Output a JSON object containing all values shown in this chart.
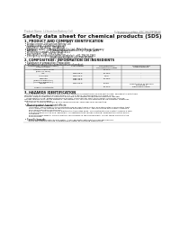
{
  "bg_color": "#ffffff",
  "header_left": "Product Name: Lithium Ion Battery Cell",
  "header_right_line1": "Substance number: 89C1632RPQK-20",
  "header_right_line2": "Established / Revision: Dec.7,2016",
  "title": "Safety data sheet for chemical products (SDS)",
  "s1_title": "1. PRODUCT AND COMPANY IDENTIFICATION",
  "s1_lines": [
    " • Product name: Lithium Ion Battery Cell",
    " • Product code: Cylindrical-type cell",
    "   (INR18650, INR18650, INR18650A",
    " • Company name:     Sanyo Electric Co., Ltd., Mobile Energy Company",
    " • Address:              2001  Kamitsukata, Sumoto-City, Hyogo, Japan",
    " • Telephone number:  +81-799-26-4111",
    " • Fax number:  +81-799-26-4129",
    " • Emergency telephone number (Weekday): +81-799-26-2962",
    "                                      (Night and holiday): +81-799-26-4101"
  ],
  "s2_title": "2. COMPOSITION / INFORMATION ON INGREDIENTS",
  "s2_lines": [
    " • Substance or preparation: Preparation",
    " • Information about the chemical nature of product:"
  ],
  "tbl_col_names": [
    "Component / chemical name /\nSeveral name",
    "CAS number",
    "Concentration /\nConcentration range",
    "Classification and\nhazard labeling"
  ],
  "tbl_rows": [
    [
      "Lithium cobalt oxide\n(LiMn-Co-NiO2)",
      "-",
      "30-50%",
      "-"
    ],
    [
      "Iron",
      "7439-89-6",
      "15-25%",
      "-"
    ],
    [
      "Aluminum",
      "7429-90-5",
      "2-5%",
      "-"
    ],
    [
      "Graphite\n(Flake or graphite-I)\n(All-flake graphite-I)",
      "7782-42-5\n7782-44-2",
      "10-25%",
      "-"
    ],
    [
      "Copper",
      "7440-50-8",
      "5-15%",
      "Sensitization of the skin\ngroup No.2"
    ],
    [
      "Organic electrolyte",
      "-",
      "10-20%",
      "Flammable liquid"
    ]
  ],
  "s3_title": "3. HAZARDS IDENTIFICATION",
  "s3_para": [
    "   For the battery cell, chemical materials are stored in a hermetically sealed metal case, designed to withstand",
    "temperatures encountered during normal use. As a result, during normal use, there is no",
    "physical danger of ignition or explosion and there is no danger of hazardous materials leakage.",
    "   If exposed to a fire, added mechanical shocks, decomposed, short-term and/or under any misuse,",
    "the gas release vent can be operated. The battery cell case will be breached of fire-patterns, hazardous",
    "materials may be released.",
    "   Moreover, if heated strongly by the surrounding fire, some gas may be emitted."
  ],
  "s3_sub1": " • Most important hazard and effects:",
  "s3_health": [
    "Human health effects:",
    "    Inhalation: The release of the electrolyte has an anesthesia action and stimulates a respiratory tract.",
    "    Skin contact: The release of the electrolyte stimulates a skin. The electrolyte skin contact causes a",
    "    sore and stimulation on the skin.",
    "    Eye contact: The release of the electrolyte stimulates eyes. The electrolyte eye contact causes a sore",
    "    and stimulation on the eye. Especially, a substance that causes a strong inflammation of the eye is",
    "    contained.",
    "    Environmental effects: Since a battery cell remains in the environment, do not throw out it into the",
    "    environment."
  ],
  "s3_sub2": " • Specific hazards:",
  "s3_specific": [
    "    If the electrolyte contacts with water, it will generate detrimental hydrogen fluoride.",
    "    Since the used electrolyte is inflammable liquid, do not bring close to fire."
  ],
  "line_color": "#aaaaaa",
  "text_color": "#111111",
  "header_color": "#888888"
}
